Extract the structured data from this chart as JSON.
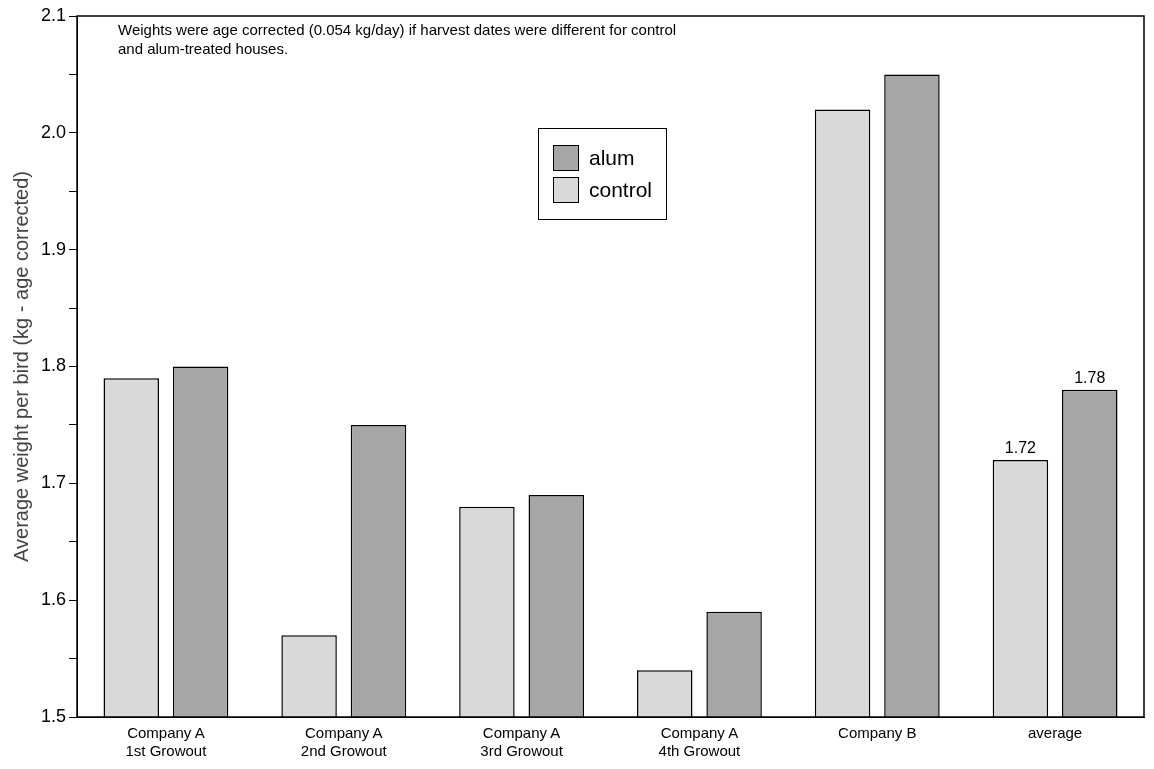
{
  "chart_data": {
    "type": "bar",
    "ylabel": "Average weight per bird (kg - age corrected)",
    "categories": [
      "Company A\n1st Growout",
      "Company A\n2nd Growout",
      "Company A\n3rd Growout",
      "Company A\n4th Growout",
      "Company B",
      "average"
    ],
    "series": [
      {
        "name": "control",
        "color": "#d9d9d9",
        "values": [
          1.79,
          1.57,
          1.68,
          1.54,
          2.02,
          1.72
        ],
        "value_labels": [
          null,
          null,
          null,
          null,
          null,
          "1.72"
        ]
      },
      {
        "name": "alum",
        "color": "#a6a6a6",
        "values": [
          1.8,
          1.75,
          1.69,
          1.59,
          2.05,
          1.78
        ],
        "value_labels": [
          null,
          null,
          null,
          null,
          null,
          "1.78"
        ]
      }
    ],
    "ylim": [
      1.5,
      2.1
    ],
    "yticks": [
      1.5,
      {
        "value": 1.55,
        "label": null
      },
      1.6,
      {
        "value": 1.65,
        "label": null
      },
      1.7,
      {
        "value": 1.75,
        "label": null
      },
      1.8,
      {
        "value": 1.85,
        "label": null
      },
      1.9,
      {
        "value": 1.95,
        "label": null
      },
      {
        "value": 2.0,
        "label": "2.0"
      },
      {
        "value": 2.05,
        "label": null
      },
      2.1
    ],
    "grid": false,
    "legend": "top",
    "annotations": [
      "Weights were age corrected (0.054 kg/day) if harvest dates were different for control and alum-treated houses."
    ]
  }
}
